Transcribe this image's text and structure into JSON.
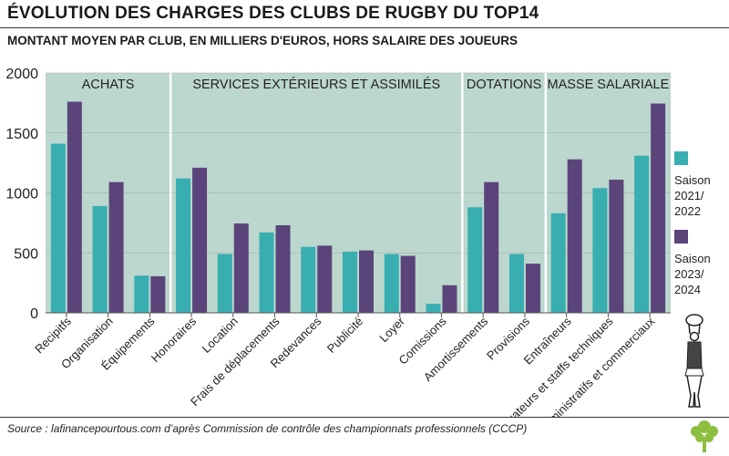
{
  "header": {
    "title": "ÉVOLUTION DES CHARGES DES CLUBS DE RUGBY DU TOP14",
    "subtitle": "MONTANT MOYEN PAR CLUB, EN MILLIERS D'EUROS, HORS SALAIRE DES JOUEURS"
  },
  "footer": {
    "source": "Source : lafinancepourtous.com d’après Commission de contrôle des championnats professionnels (CCCP)"
  },
  "legend": {
    "series1_label": "Saison 2021/ 2022",
    "series2_label": "Saison 2023/ 2024"
  },
  "colors": {
    "series1": "#38aeb1",
    "series2": "#5a447a",
    "panel": "#bcd7cd",
    "divider": "#ffffff",
    "text": "#222222"
  },
  "chart_data": {
    "type": "bar",
    "title": "ÉVOLUTION DES CHARGES DES CLUBS DE RUGBY DU TOP14",
    "subtitle": "MONTANT MOYEN PAR CLUB, EN MILLIERS D'EUROS, HORS SALAIRE DES JOUEURS",
    "xlabel": "",
    "ylabel": "",
    "ylim": [
      0,
      2000
    ],
    "yticks": [
      0,
      500,
      1000,
      1500,
      2000
    ],
    "legend_position": "right",
    "categories": [
      "Recipitfs",
      "Organisation",
      "Équipements",
      "Honoraires",
      "Location",
      "Frais de déplacements",
      "Redevances",
      "Publicité",
      "Loyer",
      "Comissions",
      "Amortissements",
      "Provisions",
      "Entraîneurs",
      "Préparateurs et staffs techniques",
      "Administratifs et commerciaux"
    ],
    "groups": [
      {
        "label": "ACHATS",
        "categories": [
          "Recipitfs",
          "Organisation",
          "Équipements"
        ]
      },
      {
        "label": "SERVICES EXTÉRIEURS ET ASSIMILÉS",
        "categories": [
          "Honoraires",
          "Location",
          "Frais de déplacements",
          "Redevances",
          "Publicité",
          "Loyer",
          "Comissions"
        ]
      },
      {
        "label": "DOTATIONS",
        "categories": [
          "Amortissements",
          "Provisions"
        ]
      },
      {
        "label": "MASSE SALARIALE",
        "categories": [
          "Entraîneurs",
          "Préparateurs et staffs techniques",
          "Administratifs et commerciaux"
        ]
      }
    ],
    "series": [
      {
        "name": "Saison 2021/2022",
        "values": [
          1410,
          890,
          310,
          1120,
          490,
          670,
          550,
          510,
          490,
          75,
          880,
          490,
          830,
          1040,
          1310
        ]
      },
      {
        "name": "Saison 2023/2024",
        "values": [
          1760,
          1090,
          305,
          1210,
          745,
          730,
          560,
          520,
          475,
          230,
          1090,
          410,
          1280,
          1110,
          1745
        ]
      }
    ]
  }
}
